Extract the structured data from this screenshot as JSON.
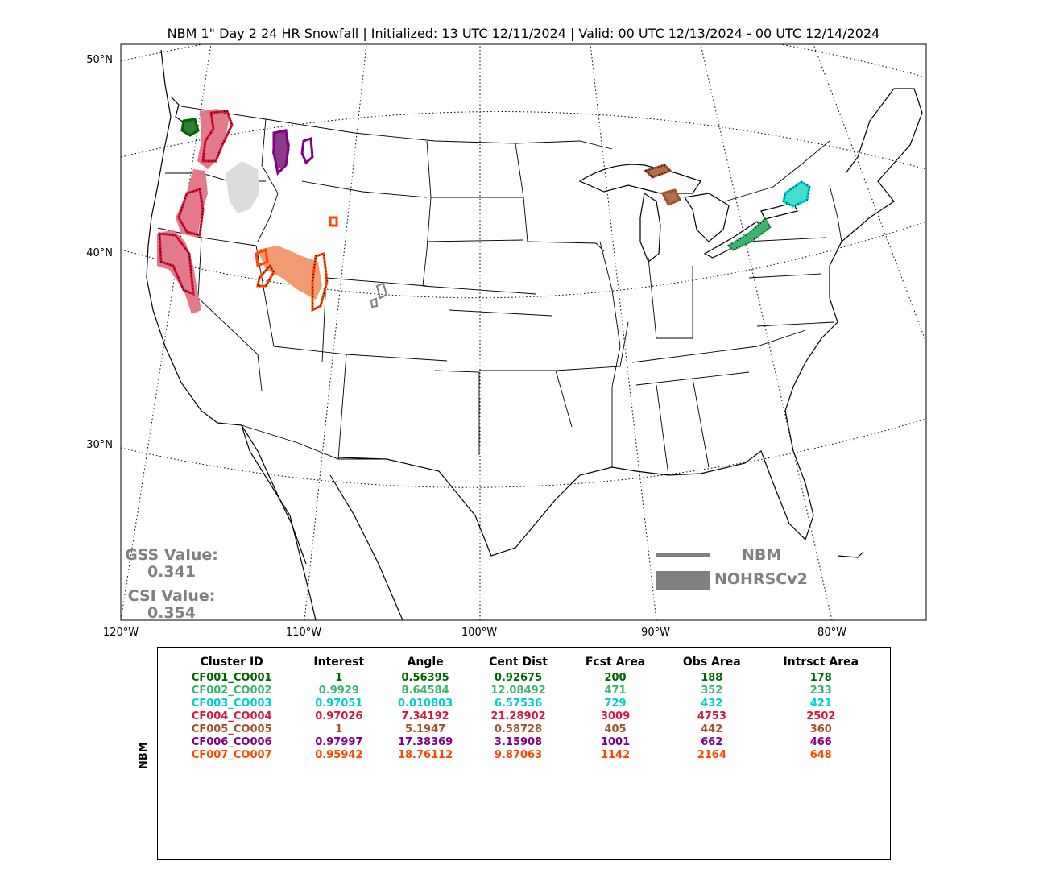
{
  "title": "NBM 1\" Day 2 24 HR Snowfall | Initialized: 13 UTC 12/11/2024 | Valid: 00 UTC 12/13/2024 - 00 UTC 12/14/2024",
  "lat_labels": [
    "50°N",
    "40°N",
    "30°N"
  ],
  "lon_labels": [
    "120°W",
    "110°W",
    "100°W",
    "90°W",
    "80°W"
  ],
  "scores": {
    "gss_label": "GSS Value:",
    "gss_value": "0.341",
    "csi_label": "CSI Value:",
    "csi_value": "0.354"
  },
  "legend": {
    "forecast_label": "NBM",
    "observed_label": "NOHRSCv2",
    "color": "#808080"
  },
  "table": {
    "side_label": "NBM",
    "headers": [
      "Cluster ID",
      "Interest",
      "Angle",
      "Cent Dist",
      "Fcst Area",
      "Obs Area",
      "Intrsct Area"
    ],
    "rows": [
      {
        "color": "#006400",
        "cells": [
          "CF001_CO001",
          "1",
          "0.56395",
          "0.92675",
          "200",
          "188",
          "178"
        ]
      },
      {
        "color": "#3cb371",
        "cells": [
          "CF002_CO002",
          "0.9929",
          "8.64584",
          "12.08492",
          "471",
          "352",
          "233"
        ]
      },
      {
        "color": "#00ced1",
        "cells": [
          "CF003_CO003",
          "0.97051",
          "0.010803",
          "6.57536",
          "729",
          "432",
          "421"
        ]
      },
      {
        "color": "#dc143c",
        "cells": [
          "CF004_CO004",
          "0.97026",
          "7.34192",
          "21.28902",
          "3009",
          "4753",
          "2502"
        ]
      },
      {
        "color": "#a0522d",
        "cells": [
          "CF005_CO005",
          "1",
          "5.1947",
          "0.58728",
          "405",
          "442",
          "360"
        ]
      },
      {
        "color": "#800080",
        "cells": [
          "CF006_CO006",
          "0.97997",
          "17.38369",
          "3.15908",
          "1001",
          "662",
          "466"
        ]
      },
      {
        "color": "#ff4500",
        "cells": [
          "CF007_CO007",
          "0.95942",
          "18.76112",
          "9.87063",
          "1142",
          "2164",
          "648"
        ]
      }
    ]
  },
  "map": {
    "region": "Contiguous United States",
    "clusters": [
      {
        "id": "CF001_CO001",
        "color": "#006400",
        "location": "northwest Washington"
      },
      {
        "id": "CF002_CO002",
        "color": "#3cb371",
        "location": "western New York / Lake Erie"
      },
      {
        "id": "CF003_CO003",
        "color": "#00ced1",
        "location": "northern New York"
      },
      {
        "id": "CF004_CO004",
        "color": "#dc143c",
        "location": "Cascades and Sierra Nevada"
      },
      {
        "id": "CF005_CO005",
        "color": "#a0522d",
        "location": "Michigan Upper Peninsula"
      },
      {
        "id": "CF006_CO006",
        "color": "#800080",
        "location": "northern Rockies"
      },
      {
        "id": "CF007_CO007",
        "color": "#ff4500",
        "location": "Utah / Wasatch"
      }
    ]
  }
}
